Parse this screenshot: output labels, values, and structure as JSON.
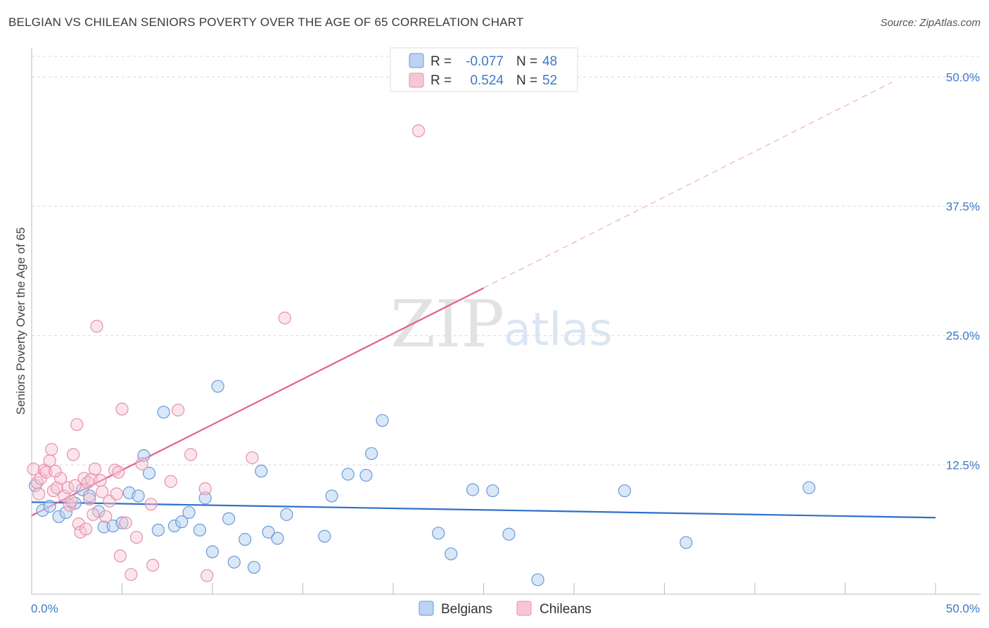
{
  "header": {
    "title": "BELGIAN VS CHILEAN SENIORS POVERTY OVER THE AGE OF 65 CORRELATION CHART",
    "source": "Source: ZipAtlas.com"
  },
  "watermark": {
    "zip": "ZIP",
    "atlas": "atlas"
  },
  "colors": {
    "belgian_fill": "#bcd3f1",
    "belgian_stroke": "#6b9ad8",
    "belgian_line": "#2f6fcb",
    "chilean_fill": "#f7c6d4",
    "chilean_stroke": "#e88fab",
    "chilean_line": "#e2608a",
    "grid": "#d9d9d9",
    "tick_text": "#3f78c6"
  },
  "legend_top": {
    "rows": [
      {
        "r_label": "R =",
        "r_value": "-0.077",
        "n_label": "N =",
        "n_value": "48"
      },
      {
        "r_label": "R =",
        "r_value": "0.524",
        "n_label": "N =",
        "n_value": "52"
      }
    ]
  },
  "legend_bottom": {
    "items": [
      "Belgians",
      "Chileans"
    ]
  },
  "chart_data": {
    "type": "scatter",
    "title": "BELGIAN VS CHILEAN SENIORS POVERTY OVER THE AGE OF 65 CORRELATION CHART",
    "xlabel": "",
    "ylabel": "Seniors Poverty Over the Age of 65",
    "xlim": [
      0,
      50
    ],
    "ylim": [
      0,
      52
    ],
    "x_tick_labels": [
      "0.0%",
      "50.0%"
    ],
    "y_ticks": [
      12.5,
      25.0,
      37.5,
      50.0
    ],
    "y_tick_labels": [
      "12.5%",
      "25.0%",
      "37.5%",
      "50.0%"
    ],
    "grid": true,
    "series": [
      {
        "name": "Belgians",
        "r": -0.077,
        "n": 48,
        "trend": {
          "x": [
            0,
            50
          ],
          "y": [
            8.9,
            7.4
          ]
        },
        "points": [
          [
            0.2,
            10.5
          ],
          [
            0.6,
            8.1
          ],
          [
            1.0,
            8.5
          ],
          [
            1.5,
            7.5
          ],
          [
            1.9,
            7.9
          ],
          [
            2.4,
            8.8
          ],
          [
            2.8,
            10.1
          ],
          [
            3.2,
            9.5
          ],
          [
            3.7,
            8.0
          ],
          [
            4.0,
            6.5
          ],
          [
            4.5,
            6.6
          ],
          [
            5.0,
            6.9
          ],
          [
            5.4,
            9.8
          ],
          [
            5.9,
            9.5
          ],
          [
            6.2,
            13.4
          ],
          [
            6.5,
            11.7
          ],
          [
            7.0,
            6.2
          ],
          [
            7.3,
            17.6
          ],
          [
            7.9,
            6.6
          ],
          [
            8.3,
            7.0
          ],
          [
            8.7,
            7.9
          ],
          [
            9.3,
            6.2
          ],
          [
            9.6,
            9.3
          ],
          [
            10.0,
            4.1
          ],
          [
            10.3,
            20.1
          ],
          [
            10.9,
            7.3
          ],
          [
            11.2,
            3.1
          ],
          [
            11.8,
            5.3
          ],
          [
            12.3,
            2.6
          ],
          [
            12.7,
            11.9
          ],
          [
            13.1,
            6.0
          ],
          [
            13.6,
            5.4
          ],
          [
            14.1,
            7.7
          ],
          [
            16.2,
            5.6
          ],
          [
            16.6,
            9.5
          ],
          [
            17.5,
            11.6
          ],
          [
            18.5,
            11.5
          ],
          [
            18.8,
            13.6
          ],
          [
            19.4,
            16.8
          ],
          [
            22.5,
            5.9
          ],
          [
            23.2,
            3.9
          ],
          [
            24.4,
            10.1
          ],
          [
            25.5,
            10.0
          ],
          [
            26.4,
            5.8
          ],
          [
            28.0,
            1.4
          ],
          [
            32.8,
            10.0
          ],
          [
            36.2,
            5.0
          ],
          [
            43.0,
            10.3
          ]
        ]
      },
      {
        "name": "Chileans",
        "r": 0.524,
        "n": 52,
        "trend": {
          "x": [
            0,
            25
          ],
          "y": [
            7.6,
            29.6
          ]
        },
        "trend_dashed": {
          "x": [
            25,
            47.6
          ],
          "y": [
            29.6,
            49.5
          ]
        },
        "points": [
          [
            0.1,
            12.1
          ],
          [
            0.3,
            10.8
          ],
          [
            0.5,
            11.2
          ],
          [
            0.7,
            12.0
          ],
          [
            0.8,
            11.8
          ],
          [
            1.0,
            12.9
          ],
          [
            1.1,
            14.0
          ],
          [
            1.2,
            10.0
          ],
          [
            1.4,
            10.3
          ],
          [
            1.6,
            11.2
          ],
          [
            1.8,
            9.5
          ],
          [
            2.0,
            10.3
          ],
          [
            2.1,
            8.6
          ],
          [
            2.3,
            13.5
          ],
          [
            2.4,
            10.5
          ],
          [
            2.5,
            16.4
          ],
          [
            2.6,
            6.8
          ],
          [
            2.7,
            6.0
          ],
          [
            2.9,
            11.2
          ],
          [
            3.0,
            6.3
          ],
          [
            3.1,
            10.8
          ],
          [
            3.3,
            11.1
          ],
          [
            3.4,
            7.7
          ],
          [
            3.5,
            12.1
          ],
          [
            3.6,
            25.9
          ],
          [
            3.8,
            11.0
          ],
          [
            3.9,
            9.9
          ],
          [
            4.1,
            7.5
          ],
          [
            4.3,
            9.0
          ],
          [
            4.6,
            12.0
          ],
          [
            4.8,
            11.8
          ],
          [
            4.9,
            3.7
          ],
          [
            5.0,
            17.9
          ],
          [
            5.2,
            6.9
          ],
          [
            5.5,
            1.9
          ],
          [
            5.8,
            5.5
          ],
          [
            6.1,
            12.6
          ],
          [
            6.6,
            8.7
          ],
          [
            6.7,
            2.8
          ],
          [
            7.7,
            10.9
          ],
          [
            8.1,
            17.8
          ],
          [
            8.8,
            13.5
          ],
          [
            9.6,
            10.2
          ],
          [
            9.7,
            1.8
          ],
          [
            12.2,
            13.2
          ],
          [
            14.0,
            26.7
          ],
          [
            21.4,
            44.8
          ],
          [
            0.4,
            9.7
          ],
          [
            1.3,
            11.9
          ],
          [
            2.2,
            9.0
          ],
          [
            4.7,
            9.7
          ],
          [
            3.2,
            9.2
          ]
        ]
      }
    ]
  }
}
